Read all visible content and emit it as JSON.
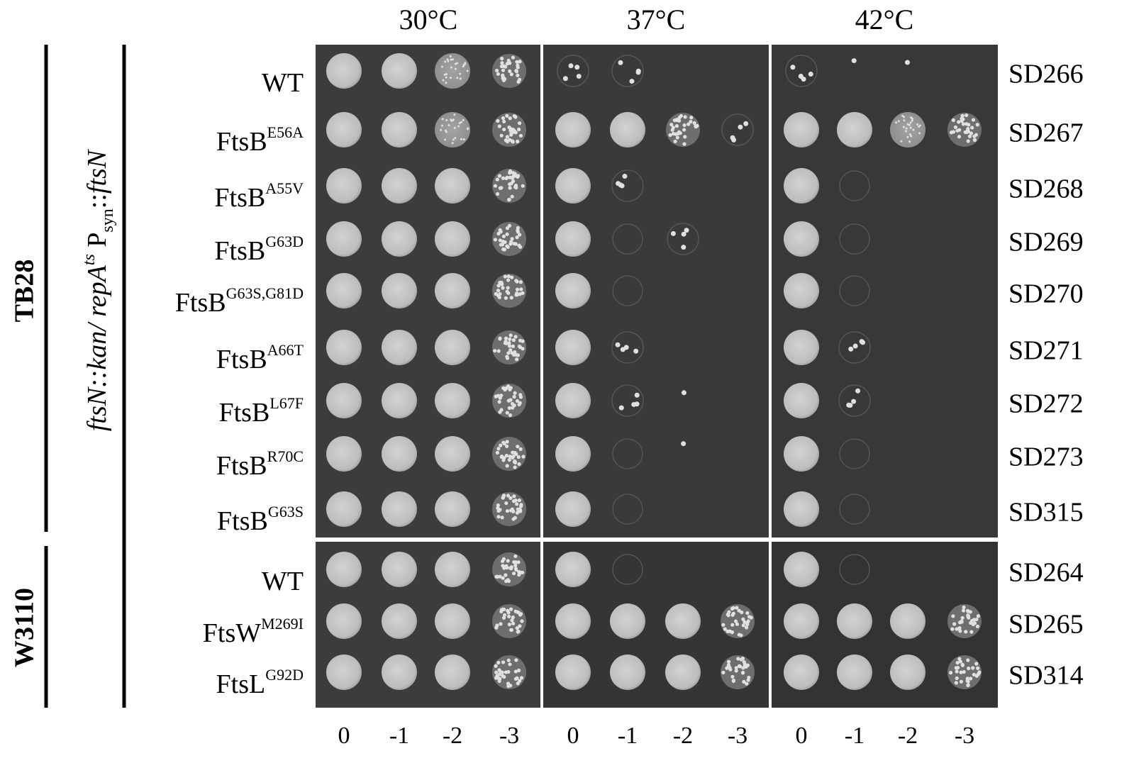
{
  "header": {
    "temperatures": [
      "30°C",
      "37°C",
      "42°C"
    ]
  },
  "groups": [
    {
      "label": "TB28"
    },
    {
      "label": "W3110"
    }
  ],
  "genotype": [
    {
      "text": "ftsN::kan/ repA",
      "style": "italic"
    },
    {
      "text": "ts",
      "style": "italic-sup"
    },
    {
      "text": " P",
      "style": "normal"
    },
    {
      "text": "syn",
      "style": "sub"
    },
    {
      "text": "::",
      "style": "normal"
    },
    {
      "text": "ftsN",
      "style": "italic"
    }
  ],
  "rows": [
    {
      "base": "WT",
      "sup": null,
      "strain": "SD266"
    },
    {
      "base": "FtsB",
      "sup": "E56A",
      "strain": "SD267"
    },
    {
      "base": "FtsB",
      "sup": "A55V",
      "strain": "SD268"
    },
    {
      "base": "FtsB",
      "sup": "G63D",
      "strain": "SD269"
    },
    {
      "base": "FtsB",
      "sup": "G63S,G81D",
      "strain": "SD270"
    },
    {
      "base": "FtsB",
      "sup": "A66T",
      "strain": "SD271"
    },
    {
      "base": "FtsB",
      "sup": "L67F",
      "strain": "SD272"
    },
    {
      "base": "FtsB",
      "sup": "R70C",
      "strain": "SD273"
    },
    {
      "base": "FtsB",
      "sup": "G63S",
      "strain": "SD315"
    },
    {
      "base": "WT",
      "sup": null,
      "strain": "SD264"
    },
    {
      "base": "FtsW",
      "sup": "M269I",
      "strain": "SD265"
    },
    {
      "base": "FtsL",
      "sup": "G92D",
      "strain": "SD314"
    }
  ],
  "dilutions": [
    "0",
    "-1",
    "-2",
    "-3"
  ]
}
